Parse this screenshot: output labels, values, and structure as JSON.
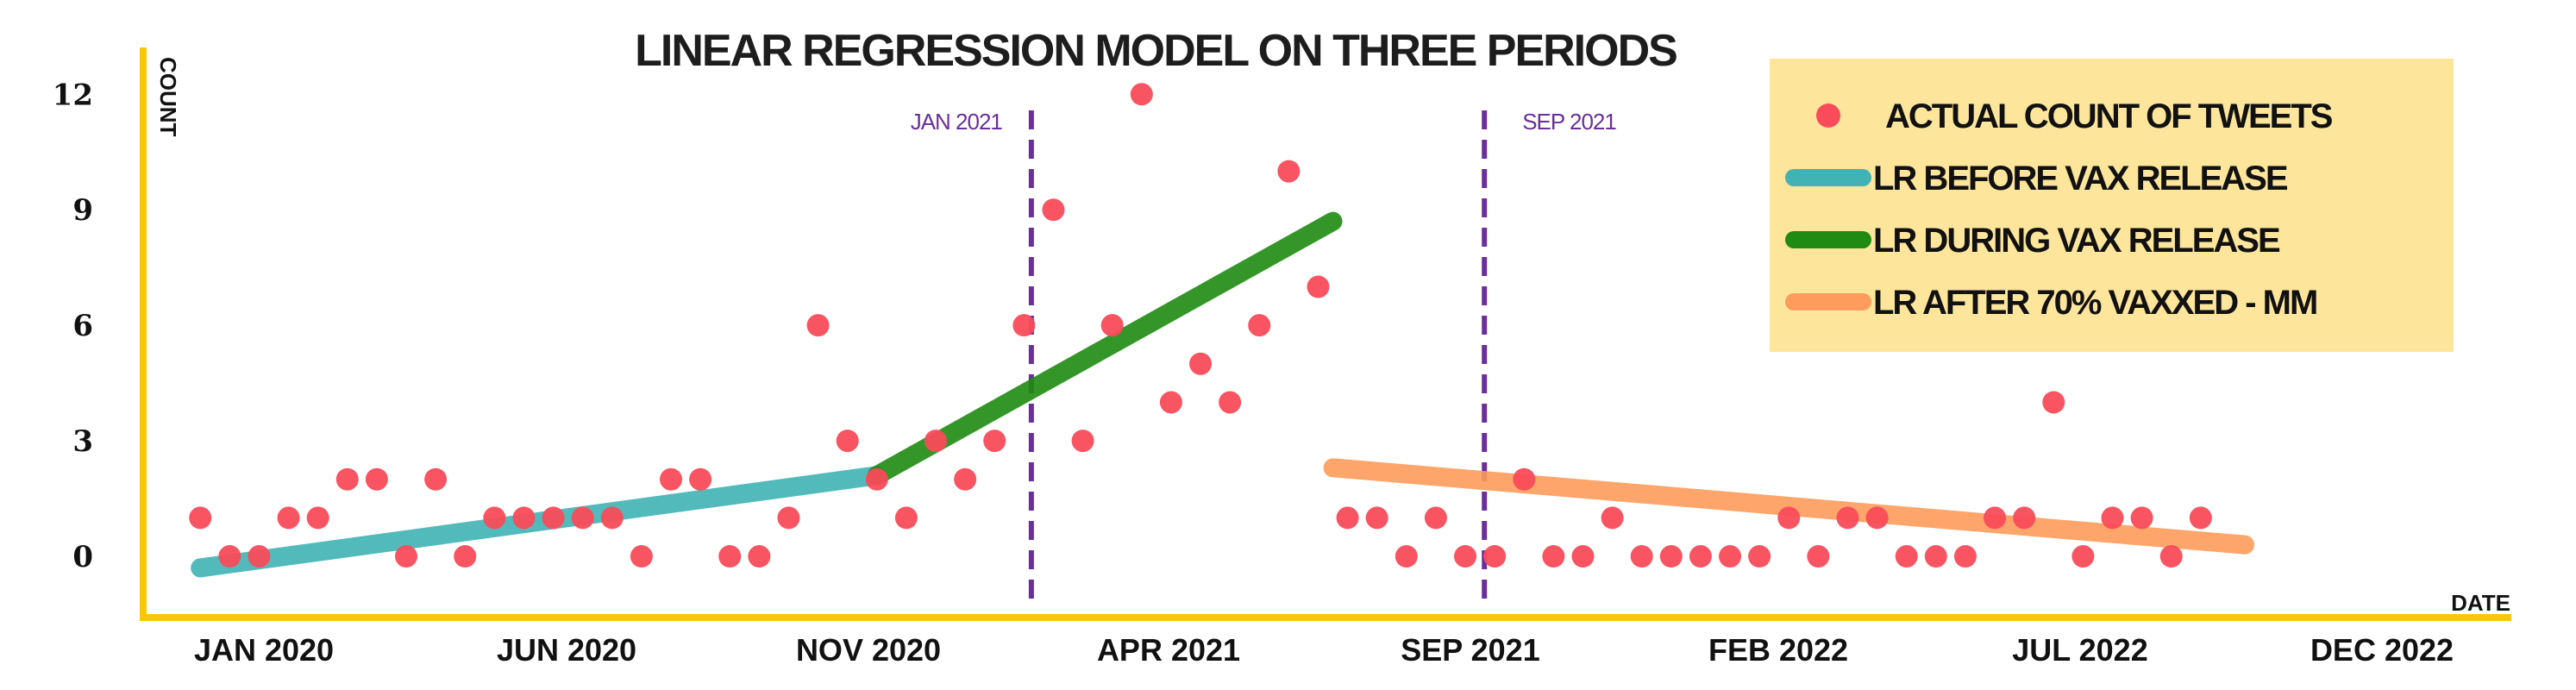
{
  "chart_data": {
    "type": "scatter",
    "title": "LINEAR REGRESSION MODEL ON THREE PERIODS",
    "xlabel": "DATE",
    "ylabel": "COUNT",
    "ylim": [
      -1.5,
      14
    ],
    "yticks": [
      0,
      3,
      6,
      9,
      12
    ],
    "x_ticks": [
      "JAN 2020",
      "JUN 2020",
      "NOV 2020",
      "APR 2021",
      "SEP 2021",
      "FEB 2022",
      "JUL 2022",
      "DEC 2022"
    ],
    "x_unit": "weeks",
    "xlim": [
      -4,
      157
    ],
    "grid": false,
    "legend_position": "top-right",
    "vlines": [
      {
        "x": 56.5,
        "label": "JAN 2021"
      },
      {
        "x": 87.3,
        "label": "SEP 2021"
      }
    ],
    "series": [
      {
        "name": "ACTUAL COUNT  OF TWEETS",
        "color": "#f94b5a",
        "type": "scatter",
        "points": [
          [
            0,
            1
          ],
          [
            2,
            0
          ],
          [
            4,
            0
          ],
          [
            6,
            1
          ],
          [
            8,
            1
          ],
          [
            10,
            2
          ],
          [
            12,
            2
          ],
          [
            14,
            0
          ],
          [
            16,
            2
          ],
          [
            18,
            0
          ],
          [
            20,
            1
          ],
          [
            22,
            1
          ],
          [
            24,
            1
          ],
          [
            26,
            1
          ],
          [
            28,
            1
          ],
          [
            30,
            0
          ],
          [
            32,
            2
          ],
          [
            34,
            2
          ],
          [
            36,
            0
          ],
          [
            38,
            0
          ],
          [
            40,
            1
          ],
          [
            42,
            6
          ],
          [
            44,
            3
          ],
          [
            46,
            2
          ],
          [
            48,
            1
          ],
          [
            50,
            3
          ],
          [
            52,
            2
          ],
          [
            54,
            3
          ],
          [
            56,
            6
          ],
          [
            58,
            9
          ],
          [
            60,
            3
          ],
          [
            62,
            6
          ],
          [
            64,
            12
          ],
          [
            66,
            4
          ],
          [
            68,
            5
          ],
          [
            70,
            4
          ],
          [
            72,
            6
          ],
          [
            74,
            10
          ],
          [
            76,
            7
          ],
          [
            78,
            1
          ],
          [
            80,
            1
          ],
          [
            82,
            0
          ],
          [
            84,
            1
          ],
          [
            86,
            0
          ],
          [
            88,
            0
          ],
          [
            90,
            2
          ],
          [
            92,
            0
          ],
          [
            94,
            0
          ],
          [
            96,
            1
          ],
          [
            98,
            0
          ],
          [
            100,
            0
          ],
          [
            102,
            0
          ],
          [
            104,
            0
          ],
          [
            106,
            0
          ],
          [
            108,
            1
          ],
          [
            110,
            0
          ],
          [
            112,
            1
          ],
          [
            114,
            1
          ],
          [
            116,
            0
          ],
          [
            118,
            0
          ],
          [
            120,
            0
          ],
          [
            122,
            1
          ],
          [
            124,
            1
          ],
          [
            126,
            4
          ],
          [
            128,
            0
          ],
          [
            130,
            1
          ],
          [
            132,
            1
          ],
          [
            134,
            0
          ],
          [
            136,
            1
          ]
        ]
      },
      {
        "name": "LR BEFORE VAX RELEASE",
        "color": "#41b3b5",
        "type": "line",
        "x": [
          0,
          46
        ],
        "y": [
          -0.3,
          2.1
        ]
      },
      {
        "name": "LR DURING VAX RELEASE",
        "color": "#1f8b12",
        "type": "line",
        "x": [
          46,
          77
        ],
        "y": [
          2.1,
          8.7
        ]
      },
      {
        "name": "LR AFTER 70% VAXXED - MM",
        "color": "#fd9c5c",
        "type": "line",
        "x": [
          77,
          139
        ],
        "y": [
          2.3,
          0.3
        ]
      }
    ],
    "colors": {
      "axis": "#f9c70a",
      "vline": "#6a2f9a",
      "legend_bg": "#fde59c"
    }
  }
}
